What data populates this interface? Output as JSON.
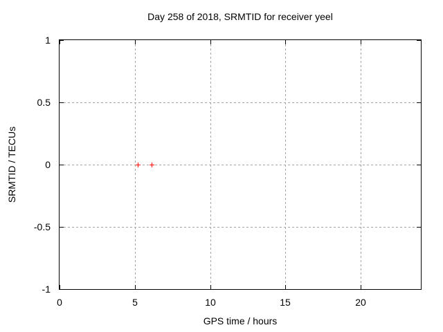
{
  "window": {
    "background": "#ffffff",
    "text_color": "#000000",
    "grid_color": "#a2a2a2"
  },
  "chart_data": {
    "type": "scatter",
    "title": "Day 258 of 2018, SRMTID for receiver yeel",
    "xlabel": "GPS time / hours",
    "ylabel": "SRMTID / TECUs",
    "xlim": [
      0,
      24
    ],
    "ylim": [
      -1,
      1
    ],
    "xticks": [
      {
        "value": 0,
        "label": "0"
      },
      {
        "value": 5,
        "label": "5"
      },
      {
        "value": 10,
        "label": "10"
      },
      {
        "value": 15,
        "label": "15"
      },
      {
        "value": 20,
        "label": "20"
      }
    ],
    "yticks": [
      {
        "value": -1,
        "label": "-1"
      },
      {
        "value": -0.5,
        "label": "-0.5"
      },
      {
        "value": 0,
        "label": "0"
      },
      {
        "value": 0.5,
        "label": "0.5"
      },
      {
        "value": 1,
        "label": "1"
      }
    ],
    "grid": true,
    "legend_position": "none",
    "series": [
      {
        "name": "SRMTID",
        "marker": "plus",
        "color": "#ff0000",
        "points": [
          {
            "x": 5.2,
            "y": 0
          },
          {
            "x": 6.1,
            "y": 0
          }
        ]
      }
    ]
  }
}
